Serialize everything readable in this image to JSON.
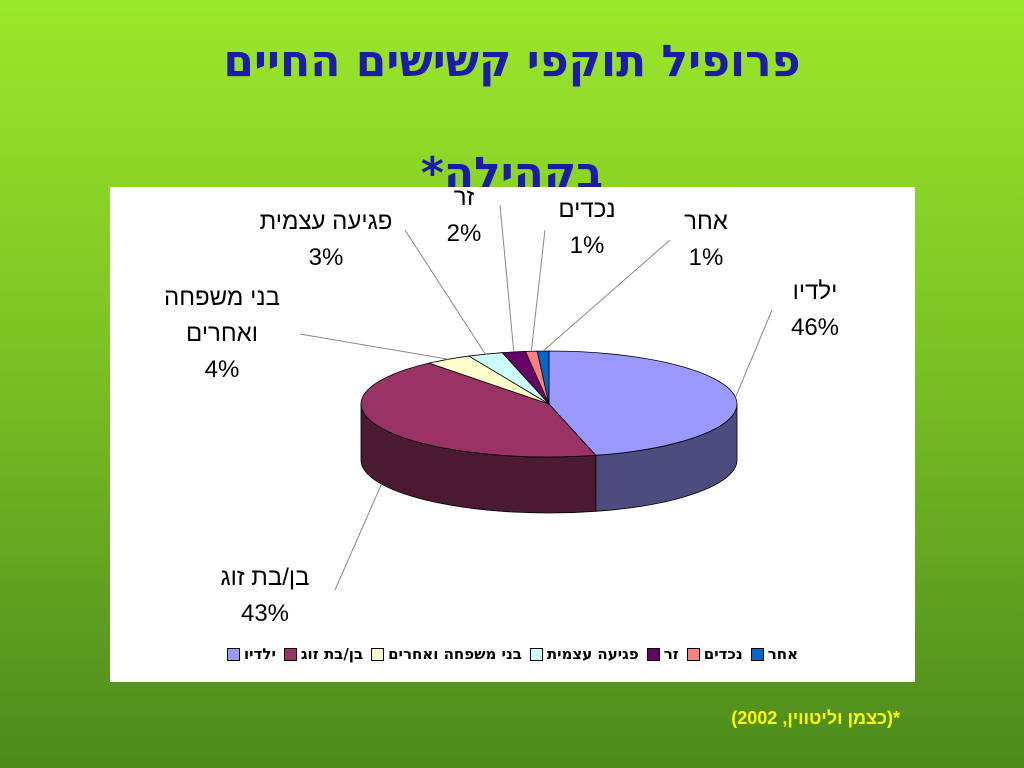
{
  "title": "פרופיל תוקפי קשישים החיים בקהילה*",
  "footnote": "*(כצמן וליטווין, 2002)",
  "chart_data": {
    "type": "pie",
    "categories": [
      "ילדיו",
      "בן/בת זוג",
      "בני משפחה ואחרים",
      "פגיעה עצמית",
      "זר",
      "נכדים",
      "אחר"
    ],
    "values": [
      46,
      43,
      4,
      3,
      2,
      1,
      1
    ],
    "value_labels": [
      "46%",
      "43%",
      "4%",
      "3%",
      "2%",
      "1%",
      "1%"
    ],
    "colors": [
      "#9999ff",
      "#993366",
      "#ffffcc",
      "#ccffff",
      "#660066",
      "#ff8080",
      "#0066cc"
    ],
    "legend": "bottom"
  }
}
